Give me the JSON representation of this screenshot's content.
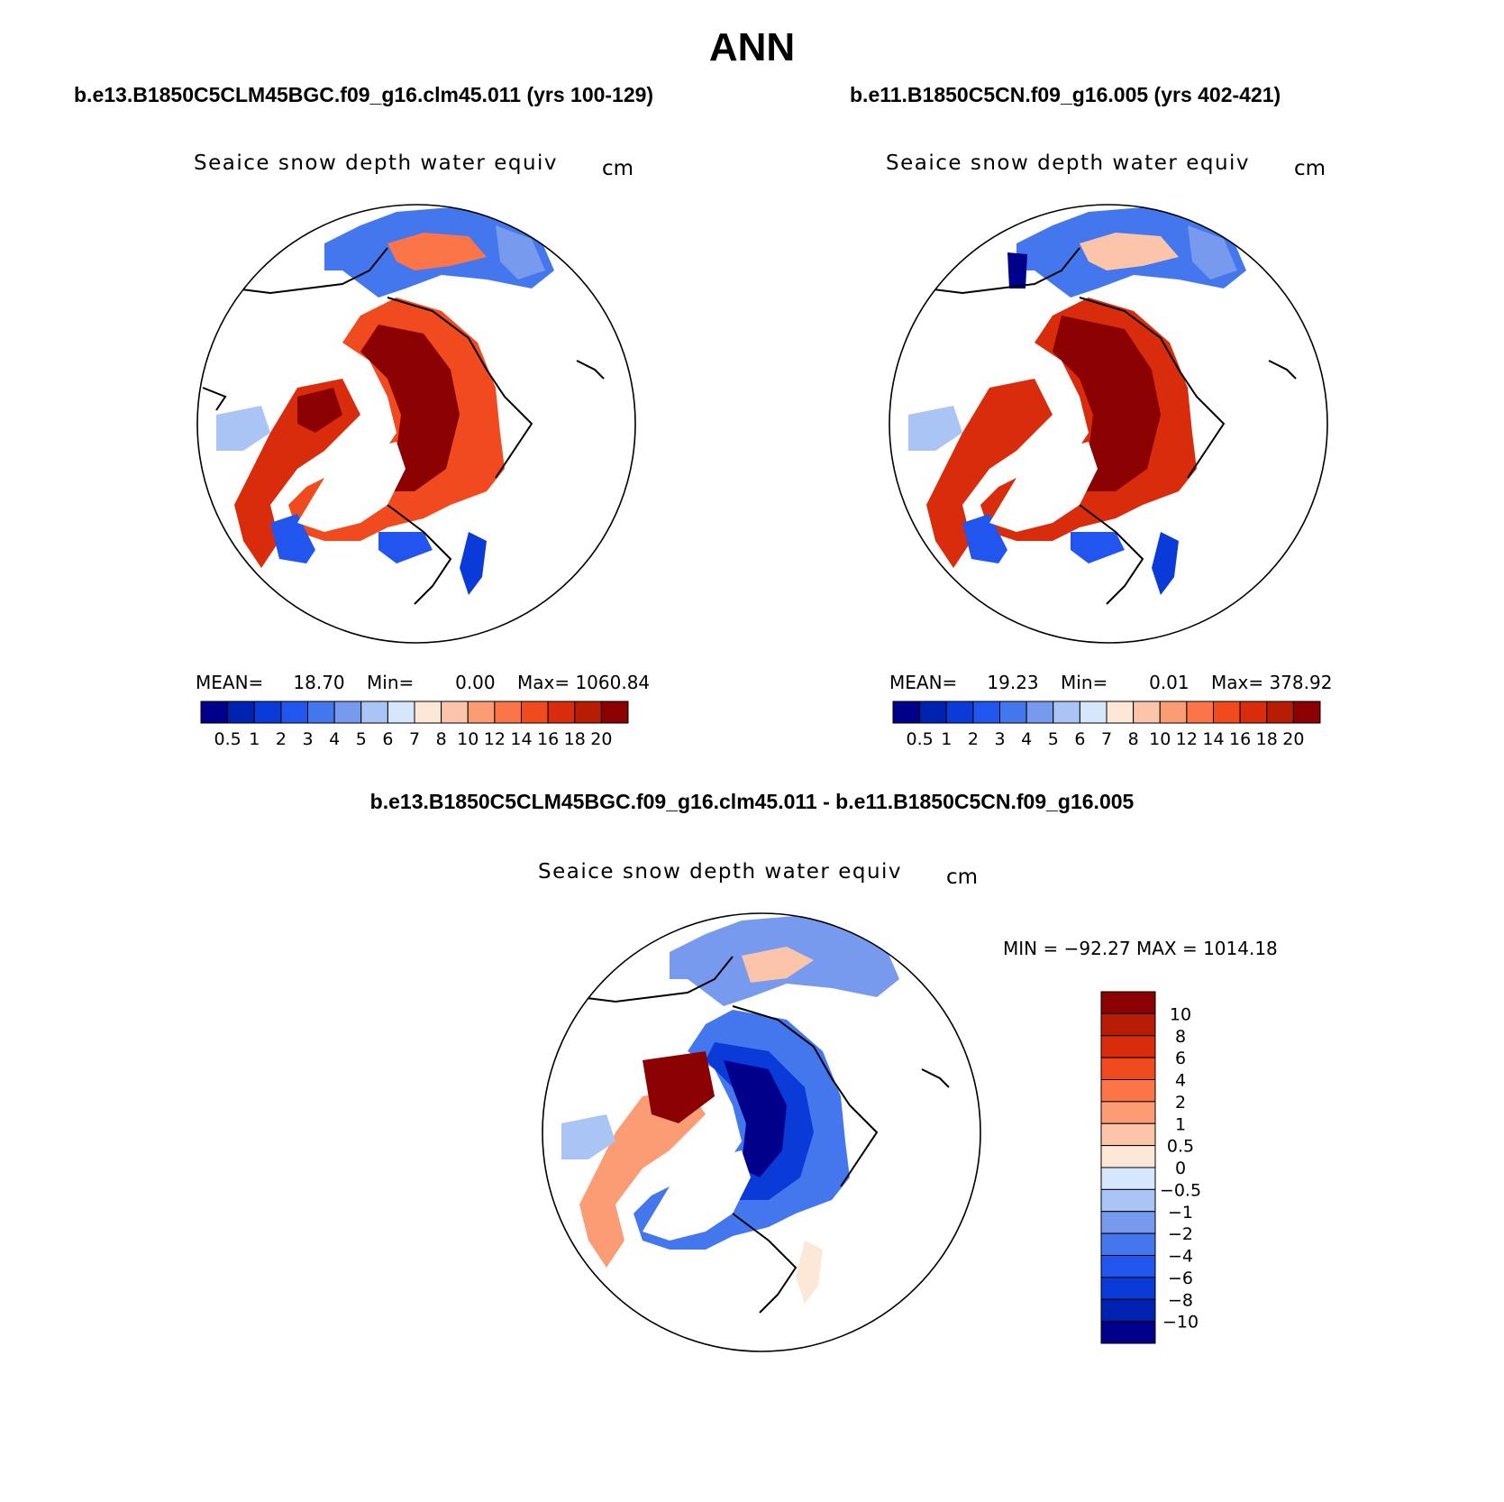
{
  "main_title": "ANN",
  "panels": [
    {
      "case_title": "b.e13.B1850C5CLM45BGC.f09_g16.clm45.011 (yrs 100-129)",
      "field_label": "Seaice snow depth water equiv",
      "units": "cm",
      "stats": {
        "mean_label": "MEAN=",
        "mean": "18.70",
        "min_label": "Min=",
        "min": "0.00",
        "max_label": "Max=",
        "max": "1060.84"
      }
    },
    {
      "case_title": "b.e11.B1850C5CN.f09_g16.005 (yrs 402-421)",
      "field_label": "Seaice snow depth water equiv",
      "units": "cm",
      "stats": {
        "mean_label": "MEAN=",
        "mean": "19.23",
        "min_label": "Min=",
        "min": "0.01",
        "max_label": "Max=",
        "max": "378.92"
      }
    }
  ],
  "diff_panel": {
    "title": "b.e13.B1850C5CLM45BGC.f09_g16.clm45.011 - b.e11.B1850C5CN.f09_g16.005",
    "field_label": "Seaice snow depth water equiv",
    "units": "cm",
    "min_max": "MIN = −92.27 MAX = 1014.18"
  },
  "abs_colorbar": {
    "colors": [
      "#00008a",
      "#0022b0",
      "#0a3ad8",
      "#2255ee",
      "#4477ee",
      "#7799ee",
      "#aac4f6",
      "#d6e7fb",
      "#fde8d8",
      "#fcc4a8",
      "#fc9c74",
      "#fb7548",
      "#f04a1e",
      "#d82c0c",
      "#b81c04",
      "#8b0000"
    ],
    "labels": [
      "0.5",
      "1",
      "2",
      "3",
      "4",
      "5",
      "6",
      "7",
      "8",
      "10",
      "12",
      "14",
      "16",
      "18",
      "20"
    ]
  },
  "diff_colorbar": {
    "colors": [
      "#00008a",
      "#0022b0",
      "#0a3ad8",
      "#2255ee",
      "#4477ee",
      "#7799ee",
      "#aac4f6",
      "#d6e7fb",
      "#fde8d8",
      "#fcc4a8",
      "#fc9c74",
      "#fb7548",
      "#f04a1e",
      "#d82c0c",
      "#b81c04",
      "#8b0000"
    ],
    "labels": [
      "10",
      "8",
      "6",
      "4",
      "2",
      "1",
      "0.5",
      "0",
      "−0.5",
      "−1",
      "−2",
      "−4",
      "−6",
      "−8",
      "−10"
    ]
  }
}
